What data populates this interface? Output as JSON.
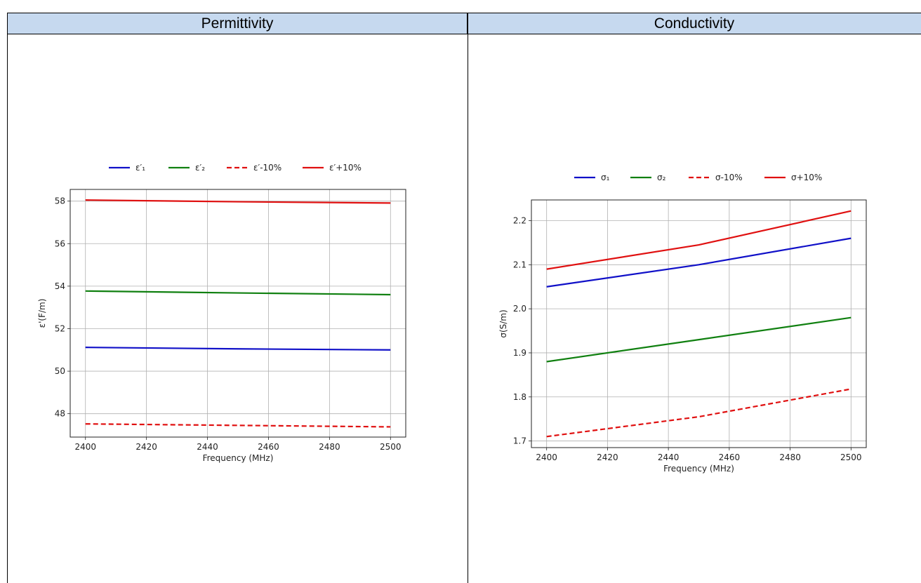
{
  "headers": {
    "left": "Permittivity",
    "right": "Conductivity"
  },
  "chart_data": [
    {
      "type": "line",
      "xlabel": "Frequency (MHz)",
      "ylabel": "ε'(F/m)",
      "xlim": [
        2395,
        2505
      ],
      "ylim": [
        46.9,
        58.55
      ],
      "xticks": [
        2400,
        2420,
        2440,
        2460,
        2480,
        2500
      ],
      "yticks": [
        48,
        50,
        52,
        54,
        56,
        58
      ],
      "grid": true,
      "legend_position": "top-center",
      "x": [
        2400,
        2450,
        2500
      ],
      "series": [
        {
          "name": "ε′₁",
          "values": [
            51.12,
            51.05,
            51.0
          ],
          "color": "#1010c8",
          "dash": false
        },
        {
          "name": "ε′₂",
          "values": [
            53.77,
            53.68,
            53.6
          ],
          "color": "#108010",
          "dash": false
        },
        {
          "name": "ε′-10%",
          "values": [
            47.52,
            47.45,
            47.38
          ],
          "color": "#e01010",
          "dash": true
        },
        {
          "name": "ε′+10%",
          "values": [
            58.05,
            57.97,
            57.91
          ],
          "color": "#e01010",
          "dash": false
        }
      ]
    },
    {
      "type": "line",
      "xlabel": "Frequency (MHz)",
      "ylabel": "σ(S/m)",
      "xlim": [
        2395,
        2505
      ],
      "ylim": [
        1.685,
        2.247
      ],
      "xticks": [
        2400,
        2420,
        2440,
        2460,
        2480,
        2500
      ],
      "yticks": [
        1.7,
        1.8,
        1.9,
        2.0,
        2.1,
        2.2
      ],
      "grid": true,
      "legend_position": "top-center",
      "x": [
        2400,
        2450,
        2500
      ],
      "series": [
        {
          "name": "σ₁",
          "values": [
            2.05,
            2.1,
            2.16
          ],
          "color": "#1010c8",
          "dash": false
        },
        {
          "name": "σ₂",
          "values": [
            1.88,
            1.93,
            1.98
          ],
          "color": "#108010",
          "dash": false
        },
        {
          "name": "σ-10%",
          "values": [
            1.71,
            1.755,
            1.818
          ],
          "color": "#e01010",
          "dash": true
        },
        {
          "name": "σ+10%",
          "values": [
            2.09,
            2.145,
            2.222
          ],
          "color": "#e01010",
          "dash": false
        }
      ]
    }
  ]
}
